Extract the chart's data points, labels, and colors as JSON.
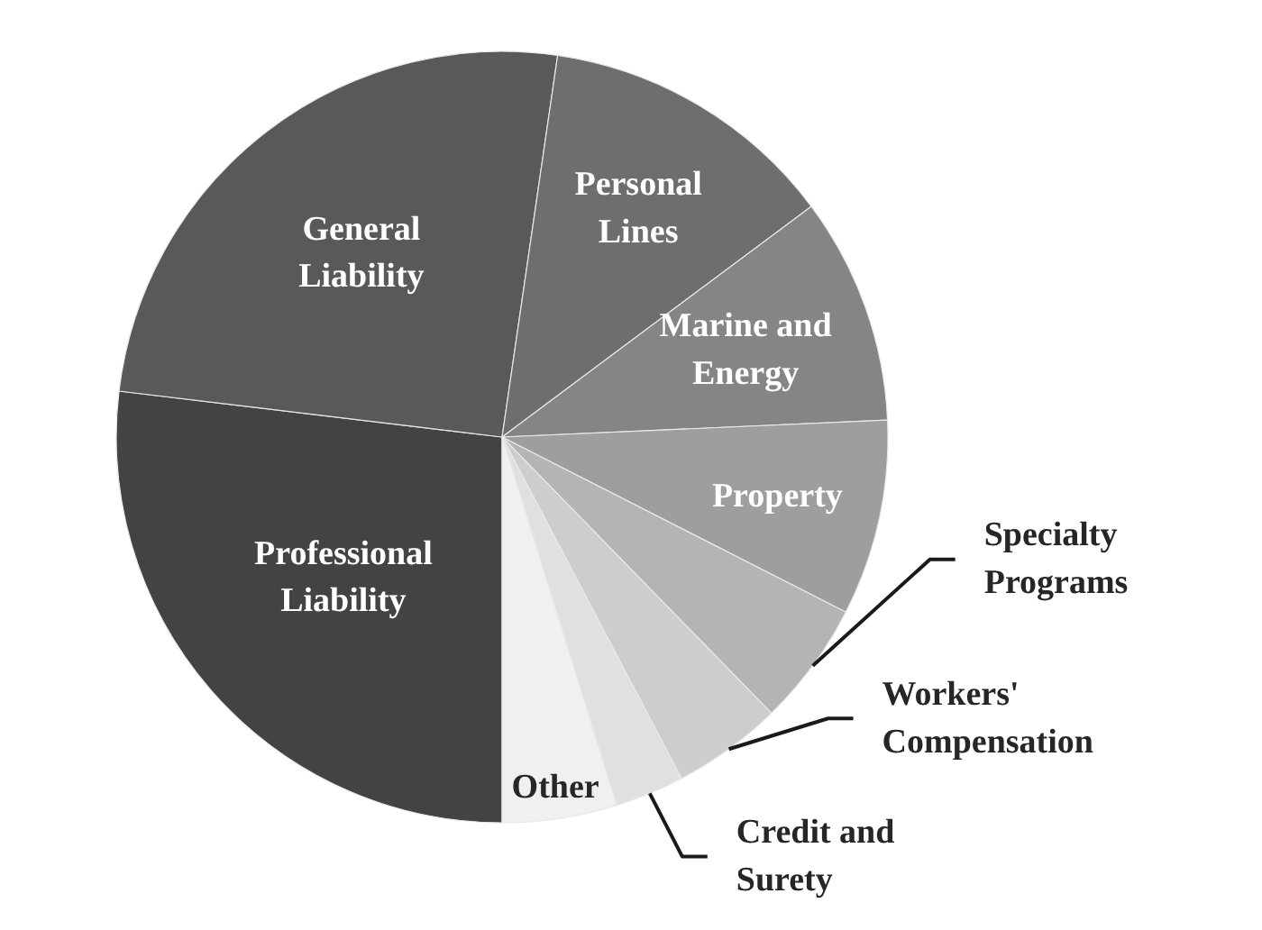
{
  "chart_data": {
    "type": "pie",
    "categories": [
      "Professional Liability",
      "General Liability",
      "Personal Lines",
      "Marine and Energy",
      "Property",
      "Specialty Programs",
      "Workers' Compensation",
      "Credit and Surety",
      "Other"
    ],
    "values": [
      26.9,
      25.4,
      12.5,
      9.5,
      8.2,
      5.2,
      4.6,
      2.9,
      4.8
    ],
    "colors": [
      "#434343",
      "#595959",
      "#6e6e6e",
      "#858585",
      "#9e9e9e",
      "#b4b4b4",
      "#cdcdcd",
      "#e0e0e0",
      "#f0f0f0"
    ]
  }
}
